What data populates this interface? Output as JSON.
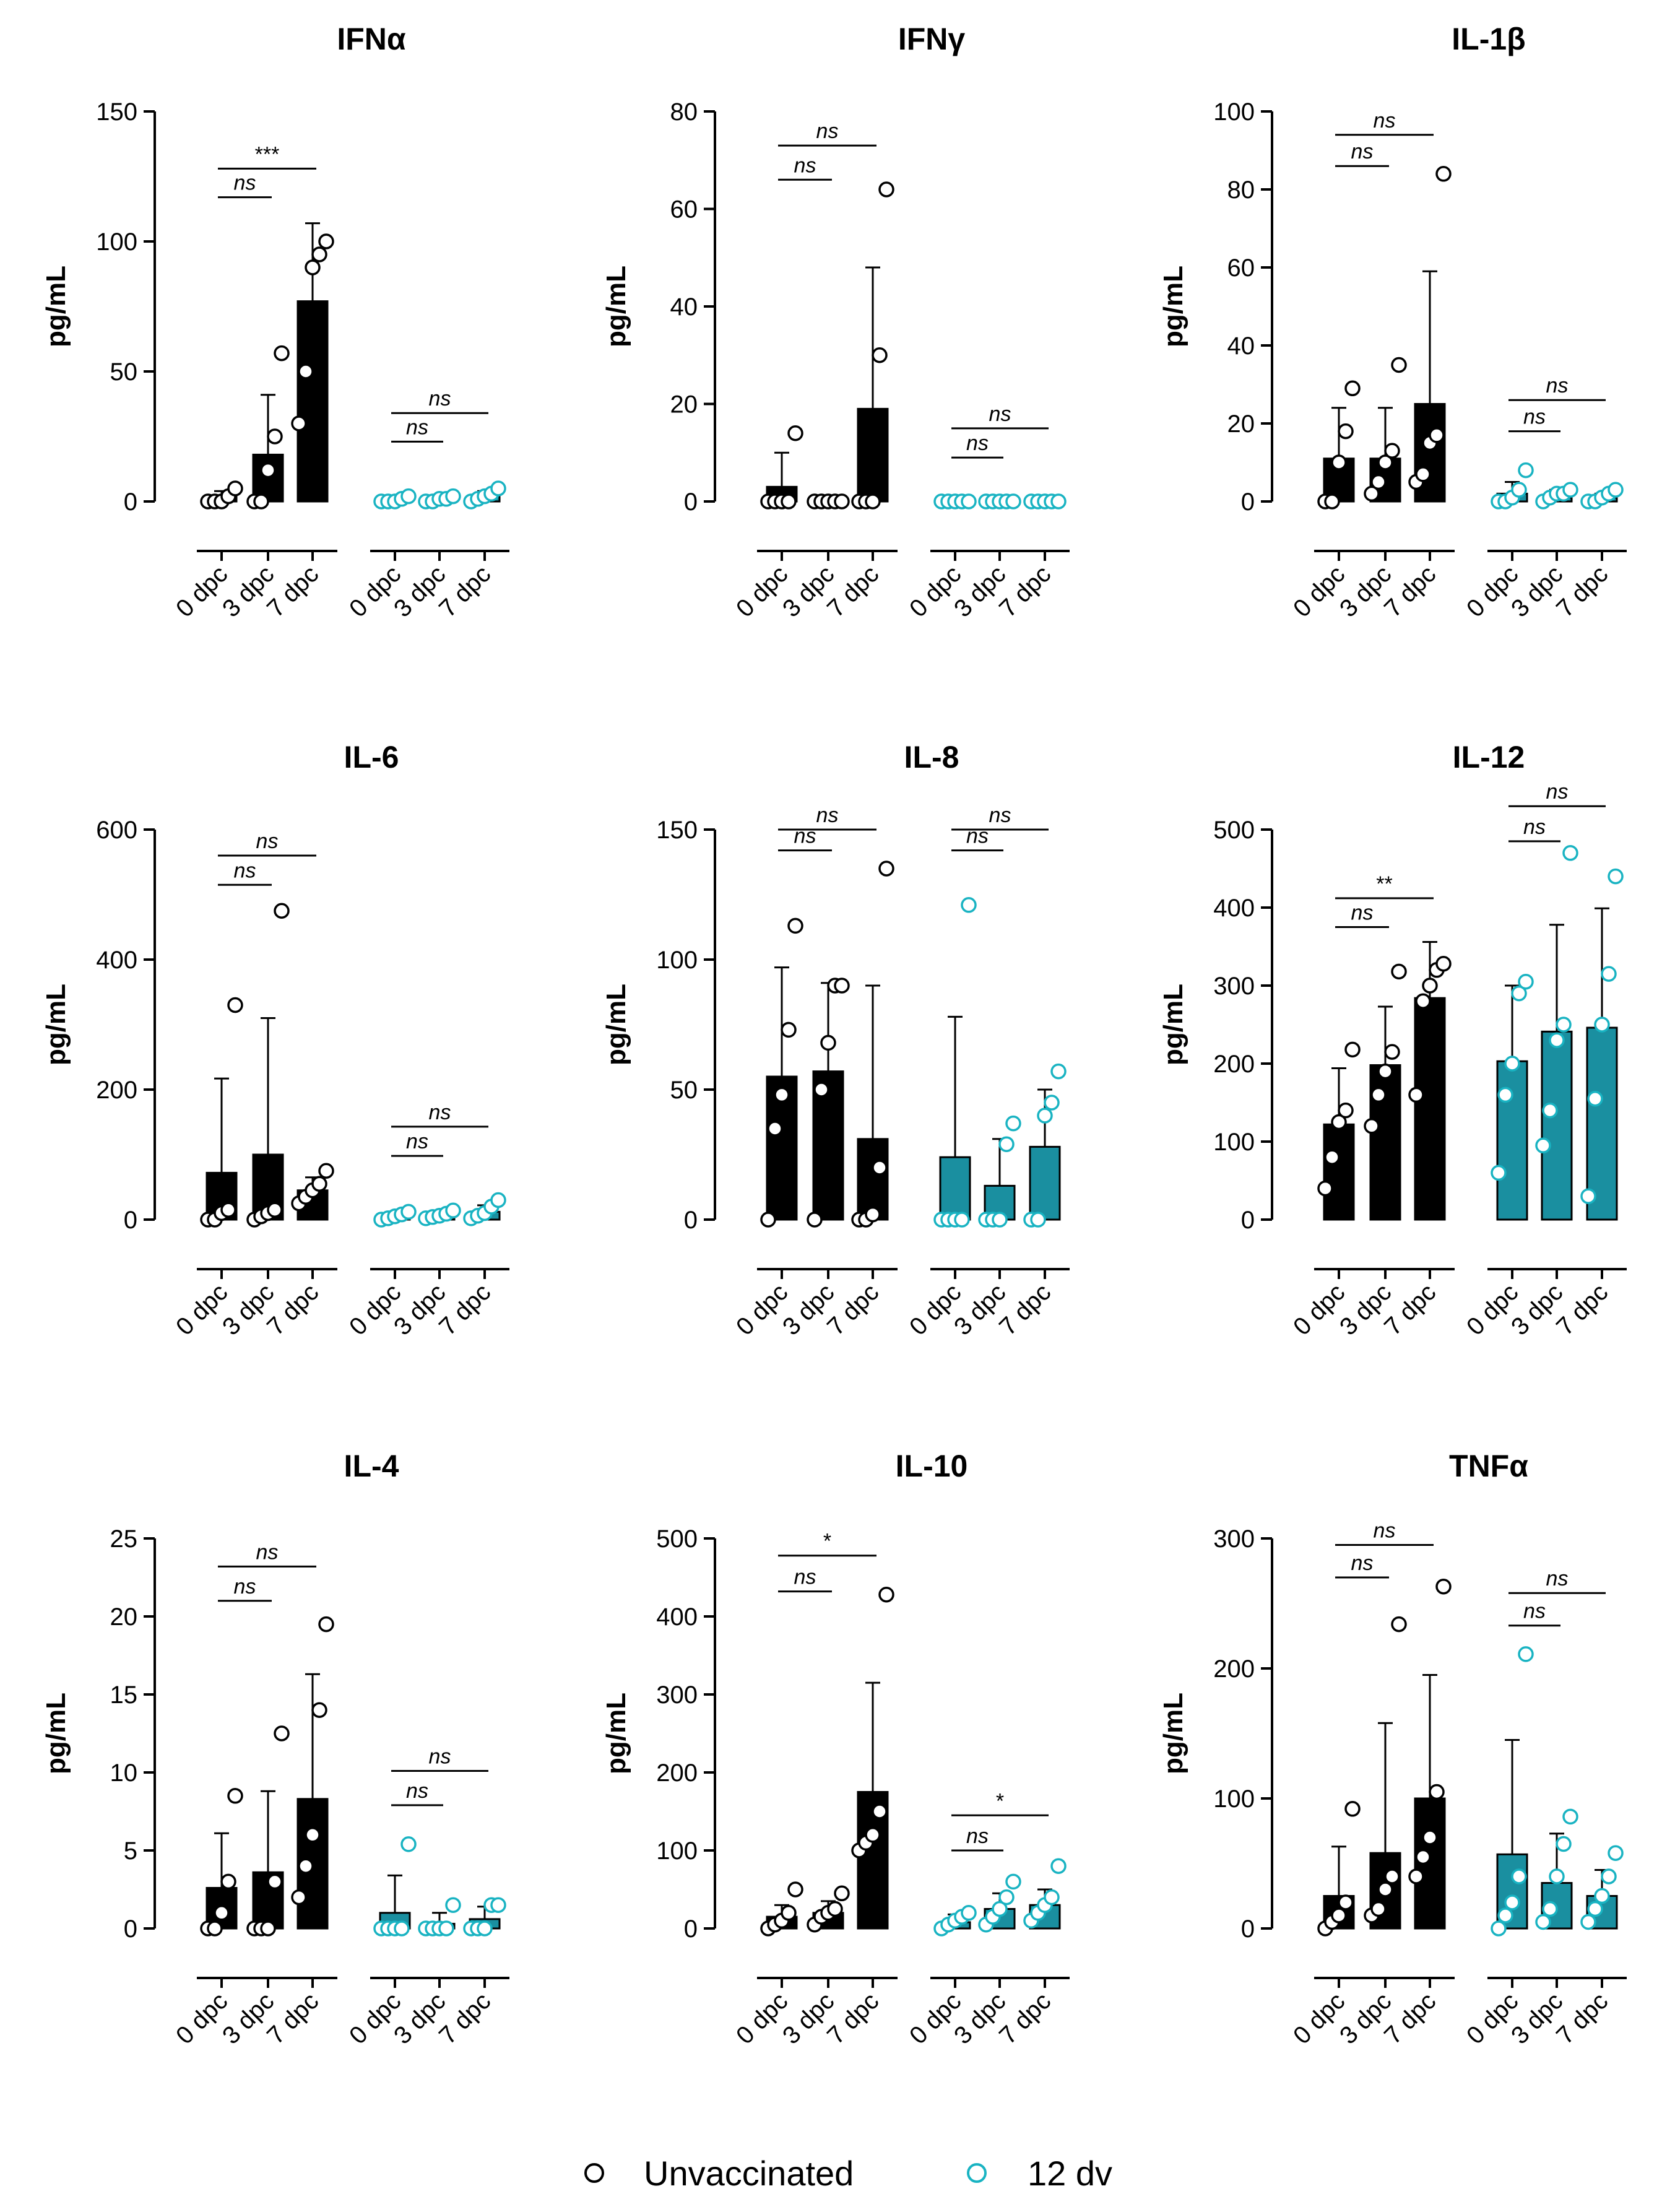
{
  "legend": [
    {
      "label": "Unvaccinated",
      "color": "#000000"
    },
    {
      "label": "12 dv",
      "color": "#1AA7B8"
    }
  ],
  "colors": {
    "unvaccinated": "#000000",
    "vaccinated": "#1A8FA0",
    "vaccinated_marker": "#19B3C2"
  },
  "chart_data": [
    {
      "type": "bar",
      "title": "IFNα",
      "ylabel": "pg/mL",
      "ylim": [
        0,
        150
      ],
      "yticks": [
        0,
        50,
        100,
        150
      ],
      "categories": [
        "0 dpc",
        "3 dpc",
        "7 dpc",
        "0 dpc",
        "3 dpc",
        "7 dpc"
      ],
      "series": [
        {
          "name": "Unvaccinated",
          "means": [
            2,
            18,
            77
          ],
          "sd": [
            2,
            23,
            30
          ],
          "points": [
            [
              0,
              0,
              0,
              2,
              5
            ],
            [
              0,
              0,
              12,
              25,
              57
            ],
            [
              30,
              50,
              90,
              95,
              100
            ]
          ]
        },
        {
          "name": "12 dv",
          "means": [
            1,
            1,
            2
          ],
          "sd": [
            1,
            1,
            2
          ],
          "points": [
            [
              0,
              0,
              0,
              1,
              2
            ],
            [
              0,
              0,
              1,
              1,
              2
            ],
            [
              0,
              1,
              2,
              3,
              5
            ]
          ]
        }
      ],
      "comparisons": [
        {
          "group": "Unvaccinated",
          "from": 0,
          "to": 1,
          "label": "ns",
          "y": 117
        },
        {
          "group": "Unvaccinated",
          "from": 0,
          "to": 2,
          "label": "***",
          "y": 128
        },
        {
          "group": "12 dv",
          "from": 0,
          "to": 1,
          "label": "ns",
          "y": 23
        },
        {
          "group": "12 dv",
          "from": 0,
          "to": 2,
          "label": "ns",
          "y": 34
        }
      ]
    },
    {
      "type": "bar",
      "title": "IFNγ",
      "ylabel": "pg/mL",
      "ylim": [
        0,
        80
      ],
      "yticks": [
        0,
        20,
        40,
        60,
        80
      ],
      "categories": [
        "0 dpc",
        "3 dpc",
        "7 dpc",
        "0 dpc",
        "3 dpc",
        "7 dpc"
      ],
      "series": [
        {
          "name": "Unvaccinated",
          "means": [
            3,
            0,
            19
          ],
          "sd": [
            7,
            0,
            29
          ],
          "points": [
            [
              0,
              0,
              0,
              0,
              14
            ],
            [
              0,
              0,
              0,
              0,
              0
            ],
            [
              0,
              0,
              0,
              30,
              64
            ]
          ]
        },
        {
          "name": "12 dv",
          "means": [
            0,
            0,
            0
          ],
          "sd": [
            0,
            0,
            0
          ],
          "points": [
            [
              0,
              0,
              0,
              0,
              0
            ],
            [
              0,
              0,
              0,
              0,
              0
            ],
            [
              0,
              0,
              0,
              0,
              0
            ]
          ]
        }
      ],
      "comparisons": [
        {
          "group": "Unvaccinated",
          "from": 0,
          "to": 1,
          "label": "ns",
          "y": 66
        },
        {
          "group": "Unvaccinated",
          "from": 0,
          "to": 2,
          "label": "ns",
          "y": 73
        },
        {
          "group": "12 dv",
          "from": 0,
          "to": 1,
          "label": "ns",
          "y": 9
        },
        {
          "group": "12 dv",
          "from": 0,
          "to": 2,
          "label": "ns",
          "y": 15
        }
      ]
    },
    {
      "type": "bar",
      "title": "IL-1β",
      "ylabel": "pg/mL",
      "ylim": [
        0,
        100
      ],
      "yticks": [
        0,
        20,
        40,
        60,
        80,
        100
      ],
      "categories": [
        "0 dpc",
        "3 dpc",
        "7 dpc",
        "0 dpc",
        "3 dpc",
        "7 dpc"
      ],
      "series": [
        {
          "name": "Unvaccinated",
          "means": [
            11,
            11,
            25
          ],
          "sd": [
            13,
            13,
            34
          ],
          "points": [
            [
              0,
              0,
              10,
              18,
              29
            ],
            [
              2,
              5,
              10,
              13,
              35
            ],
            [
              5,
              7,
              15,
              17,
              84
            ]
          ]
        },
        {
          "name": "12 dv",
          "means": [
            2,
            1,
            1
          ],
          "sd": [
            3,
            2,
            1
          ],
          "points": [
            [
              0,
              0,
              1,
              3,
              8
            ],
            [
              0,
              1,
              2,
              2,
              3
            ],
            [
              0,
              0,
              1,
              2,
              3
            ]
          ]
        }
      ],
      "comparisons": [
        {
          "group": "Unvaccinated",
          "from": 0,
          "to": 1,
          "label": "ns",
          "y": 86
        },
        {
          "group": "Unvaccinated",
          "from": 0,
          "to": 2,
          "label": "ns",
          "y": 94
        },
        {
          "group": "12 dv",
          "from": 0,
          "to": 1,
          "label": "ns",
          "y": 18
        },
        {
          "group": "12 dv",
          "from": 0,
          "to": 2,
          "label": "ns",
          "y": 26
        }
      ]
    },
    {
      "type": "bar",
      "title": "IL-6",
      "ylabel": "pg/mL",
      "ylim": [
        0,
        600
      ],
      "yticks": [
        0,
        200,
        400,
        600
      ],
      "categories": [
        "0 dpc",
        "3 dpc",
        "7 dpc",
        "0 dpc",
        "3 dpc",
        "7 dpc"
      ],
      "series": [
        {
          "name": "Unvaccinated",
          "means": [
            72,
            100,
            45
          ],
          "sd": [
            145,
            210,
            20
          ],
          "points": [
            [
              0,
              0,
              10,
              15,
              330
            ],
            [
              0,
              5,
              10,
              15,
              475
            ],
            [
              25,
              35,
              45,
              55,
              75
            ]
          ]
        },
        {
          "name": "12 dv",
          "means": [
            5,
            7,
            12
          ],
          "sd": [
            5,
            5,
            10
          ],
          "points": [
            [
              0,
              2,
              5,
              8,
              12
            ],
            [
              2,
              4,
              6,
              9,
              14
            ],
            [
              2,
              6,
              10,
              20,
              30
            ]
          ]
        }
      ],
      "comparisons": [
        {
          "group": "Unvaccinated",
          "from": 0,
          "to": 1,
          "label": "ns",
          "y": 515
        },
        {
          "group": "Unvaccinated",
          "from": 0,
          "to": 2,
          "label": "ns",
          "y": 560
        },
        {
          "group": "12 dv",
          "from": 0,
          "to": 1,
          "label": "ns",
          "y": 98
        },
        {
          "group": "12 dv",
          "from": 0,
          "to": 2,
          "label": "ns",
          "y": 143
        }
      ]
    },
    {
      "type": "bar",
      "title": "IL-8",
      "ylabel": "pg/mL",
      "ylim": [
        0,
        150
      ],
      "yticks": [
        0,
        50,
        100,
        150
      ],
      "categories": [
        "0 dpc",
        "3 dpc",
        "7 dpc",
        "0 dpc",
        "3 dpc",
        "7 dpc"
      ],
      "series": [
        {
          "name": "Unvaccinated",
          "means": [
            55,
            57,
            31
          ],
          "sd": [
            42,
            34,
            59
          ],
          "points": [
            [
              0,
              35,
              48,
              73,
              113
            ],
            [
              0,
              50,
              68,
              90,
              90
            ],
            [
              0,
              0,
              2,
              20,
              135
            ]
          ]
        },
        {
          "name": "12 dv",
          "means": [
            24,
            13,
            28
          ],
          "sd": [
            54,
            18,
            22
          ],
          "points": [
            [
              0,
              0,
              0,
              0,
              121
            ],
            [
              0,
              0,
              0,
              29,
              37
            ],
            [
              0,
              0,
              40,
              45,
              57
            ]
          ]
        }
      ],
      "comparisons": [
        {
          "group": "Unvaccinated",
          "from": 0,
          "to": 1,
          "label": "ns",
          "y": 142
        },
        {
          "group": "Unvaccinated",
          "from": 0,
          "to": 2,
          "label": "ns",
          "y": 150
        },
        {
          "group": "12 dv",
          "from": 0,
          "to": 1,
          "label": "ns",
          "y": 142
        },
        {
          "group": "12 dv",
          "from": 0,
          "to": 2,
          "label": "ns",
          "y": 150
        }
      ]
    },
    {
      "type": "bar",
      "title": "IL-12",
      "ylabel": "pg/mL",
      "ylim": [
        0,
        500
      ],
      "yticks": [
        0,
        100,
        200,
        300,
        400,
        500
      ],
      "categories": [
        "0 dpc",
        "3 dpc",
        "7 dpc",
        "0 dpc",
        "3 dpc",
        "7 dpc"
      ],
      "series": [
        {
          "name": "Unvaccinated",
          "means": [
            122,
            198,
            284
          ],
          "sd": [
            72,
            75,
            72
          ],
          "points": [
            [
              40,
              80,
              125,
              140,
              218
            ],
            [
              120,
              160,
              190,
              215,
              318
            ],
            [
              160,
              280,
              300,
              320,
              328
            ]
          ]
        },
        {
          "name": "12 dv",
          "means": [
            203,
            241,
            246
          ],
          "sd": [
            97,
            137,
            153
          ],
          "points": [
            [
              60,
              160,
              200,
              290,
              305
            ],
            [
              95,
              140,
              230,
              250,
              470
            ],
            [
              30,
              155,
              250,
              315,
              440
            ]
          ]
        }
      ],
      "comparisons": [
        {
          "group": "Unvaccinated",
          "from": 0,
          "to": 1,
          "label": "ns",
          "y": 375
        },
        {
          "group": "Unvaccinated",
          "from": 0,
          "to": 2,
          "label": "**",
          "y": 412
        },
        {
          "group": "12 dv",
          "from": 0,
          "to": 1,
          "label": "ns",
          "y": 485
        },
        {
          "group": "12 dv",
          "from": 0,
          "to": 2,
          "label": "ns",
          "y": 530
        }
      ]
    },
    {
      "type": "bar",
      "title": "IL-4",
      "ylabel": "pg/mL",
      "ylim": [
        0,
        25
      ],
      "yticks": [
        0,
        5,
        10,
        15,
        20,
        25
      ],
      "categories": [
        "0 dpc",
        "3 dpc",
        "7 dpc",
        "0 dpc",
        "3 dpc",
        "7 dpc"
      ],
      "series": [
        {
          "name": "Unvaccinated",
          "means": [
            2.6,
            3.6,
            8.3
          ],
          "sd": [
            3.5,
            5.2,
            8.0
          ],
          "points": [
            [
              0,
              0,
              1,
              3,
              8.5
            ],
            [
              0,
              0,
              0,
              3,
              12.5
            ],
            [
              2,
              4,
              6,
              14,
              19.5
            ]
          ]
        },
        {
          "name": "12 dv",
          "means": [
            1.0,
            0.3,
            0.6
          ],
          "sd": [
            2.4,
            0.7,
            0.8
          ],
          "points": [
            [
              0,
              0,
              0,
              0,
              5.4
            ],
            [
              0,
              0,
              0,
              0,
              1.5
            ],
            [
              0,
              0,
              0,
              1.5,
              1.5
            ]
          ]
        }
      ],
      "comparisons": [
        {
          "group": "Unvaccinated",
          "from": 0,
          "to": 1,
          "label": "ns",
          "y": 21
        },
        {
          "group": "Unvaccinated",
          "from": 0,
          "to": 2,
          "label": "ns",
          "y": 23.2
        },
        {
          "group": "12 dv",
          "from": 0,
          "to": 1,
          "label": "ns",
          "y": 7.9
        },
        {
          "group": "12 dv",
          "from": 0,
          "to": 2,
          "label": "ns",
          "y": 10.1
        }
      ]
    },
    {
      "type": "bar",
      "title": "IL-10",
      "ylabel": "pg/mL",
      "ylim": [
        0,
        500
      ],
      "yticks": [
        0,
        100,
        200,
        300,
        400,
        500
      ],
      "categories": [
        "0 dpc",
        "3 dpc",
        "7 dpc",
        "0 dpc",
        "3 dpc",
        "7 dpc"
      ],
      "series": [
        {
          "name": "Unvaccinated",
          "means": [
            15,
            20,
            175
          ],
          "sd": [
            15,
            15,
            140
          ],
          "points": [
            [
              0,
              5,
              10,
              20,
              50
            ],
            [
              5,
              15,
              20,
              25,
              45
            ],
            [
              100,
              110,
              120,
              150,
              428
            ]
          ]
        },
        {
          "name": "12 dv",
          "means": [
            8,
            25,
            30
          ],
          "sd": [
            10,
            20,
            20
          ],
          "points": [
            [
              0,
              5,
              10,
              15,
              20
            ],
            [
              5,
              15,
              25,
              40,
              60
            ],
            [
              10,
              20,
              30,
              40,
              80
            ]
          ]
        }
      ],
      "comparisons": [
        {
          "group": "Unvaccinated",
          "from": 0,
          "to": 1,
          "label": "ns",
          "y": 432
        },
        {
          "group": "Unvaccinated",
          "from": 0,
          "to": 2,
          "label": "*",
          "y": 478
        },
        {
          "group": "12 dv",
          "from": 0,
          "to": 1,
          "label": "ns",
          "y": 100
        },
        {
          "group": "12 dv",
          "from": 0,
          "to": 2,
          "label": "*",
          "y": 145
        }
      ]
    },
    {
      "type": "bar",
      "title": "TNFα",
      "ylabel": "pg/mL",
      "ylim": [
        0,
        300
      ],
      "yticks": [
        0,
        100,
        200,
        300
      ],
      "categories": [
        "0 dpc",
        "3 dpc",
        "7 dpc",
        "0 dpc",
        "3 dpc",
        "7 dpc"
      ],
      "series": [
        {
          "name": "Unvaccinated",
          "means": [
            25,
            58,
            100
          ],
          "sd": [
            38,
            100,
            95
          ],
          "points": [
            [
              0,
              5,
              10,
              20,
              92
            ],
            [
              10,
              15,
              30,
              40,
              234
            ],
            [
              40,
              55,
              70,
              105,
              263
            ]
          ]
        },
        {
          "name": "12 dv",
          "means": [
            57,
            35,
            25
          ],
          "sd": [
            88,
            38,
            20
          ],
          "points": [
            [
              0,
              10,
              20,
              40,
              211
            ],
            [
              5,
              15,
              40,
              65,
              86
            ],
            [
              5,
              15,
              25,
              40,
              58
            ]
          ]
        }
      ],
      "comparisons": [
        {
          "group": "Unvaccinated",
          "from": 0,
          "to": 1,
          "label": "ns",
          "y": 270
        },
        {
          "group": "Unvaccinated",
          "from": 0,
          "to": 2,
          "label": "ns",
          "y": 295
        },
        {
          "group": "12 dv",
          "from": 0,
          "to": 1,
          "label": "ns",
          "y": 233
        },
        {
          "group": "12 dv",
          "from": 0,
          "to": 2,
          "label": "ns",
          "y": 258
        }
      ]
    }
  ]
}
